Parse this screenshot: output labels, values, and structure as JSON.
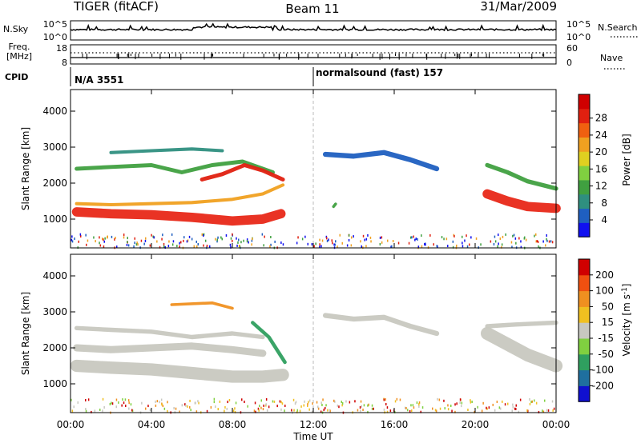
{
  "header": {
    "radar": "TIGER (fitACF)",
    "beam": "Beam 11",
    "date": "31/Mar/2009"
  },
  "strip": {
    "nsky_label": "N.Sky",
    "nsky_ticks": [
      "10^5",
      "10^0"
    ],
    "nsearch_label": "N.Search",
    "nsearch_ticks": [
      "10^5",
      "10^0"
    ],
    "freq_label": "Freq.",
    "freq_unit": "[MHz]",
    "freq_ticks": [
      "18",
      "8"
    ],
    "nave_label": "Nave",
    "nave_ticks": [
      "60",
      "0"
    ],
    "cpid_label": "CPID",
    "cpid_modes": [
      {
        "label": "N/A 3551"
      },
      {
        "label": "normalsound (fast) 157"
      }
    ]
  },
  "chart_data": [
    {
      "type": "heatmap",
      "name": "power",
      "ylabel": "Slant Range [km]",
      "xlabel": "Time UT",
      "xticks": [
        "00:00",
        "04:00",
        "08:00",
        "12:00",
        "16:00",
        "20:00",
        "00:00"
      ],
      "yticks": [
        "1000",
        "2000",
        "3000",
        "4000"
      ],
      "ylim": [
        200,
        4600
      ],
      "colorbar": {
        "label": "Power [dB]",
        "ticks": [
          "4",
          "8",
          "12",
          "16",
          "20",
          "24",
          "28"
        ],
        "colors": [
          "#1010f0",
          "#1f5fc0",
          "#2f8f7f",
          "#40a040",
          "#80d040",
          "#e0d020",
          "#f0a020",
          "#f06010",
          "#e02010",
          "#d00000"
        ]
      },
      "bands": [
        {
          "points": [
            [
              0.3,
              1200
            ],
            [
              2,
              1150
            ],
            [
              4,
              1120
            ],
            [
              6,
              1050
            ],
            [
              8,
              950
            ],
            [
              9.5,
              1000
            ],
            [
              10.4,
              1150
            ]
          ],
          "width": 260,
          "color": "#e82818"
        },
        {
          "points": [
            [
              0.3,
              1430
            ],
            [
              2,
              1400
            ],
            [
              4,
              1430
            ],
            [
              6,
              1460
            ],
            [
              8,
              1550
            ],
            [
              9.5,
              1700
            ],
            [
              10.5,
              1950
            ]
          ],
          "width": 90,
          "color": "#f0a020"
        },
        {
          "points": [
            [
              0.3,
              2400
            ],
            [
              2,
              2450
            ],
            [
              4,
              2500
            ],
            [
              5.5,
              2300
            ],
            [
              7,
              2500
            ],
            [
              8.5,
              2600
            ],
            [
              10,
              2300
            ]
          ],
          "width": 110,
          "color": "#40a040"
        },
        {
          "points": [
            [
              6.5,
              2100
            ],
            [
              7.5,
              2250
            ],
            [
              8.6,
              2500
            ],
            [
              9.5,
              2350
            ],
            [
              10.5,
              2100
            ]
          ],
          "width": 110,
          "color": "#e02010"
        },
        {
          "points": [
            [
              2,
              2850
            ],
            [
              4,
              2900
            ],
            [
              6,
              2950
            ],
            [
              7.5,
              2900
            ]
          ],
          "width": 90,
          "color": "#2f8f7f"
        },
        {
          "points": [
            [
              12.6,
              2800
            ],
            [
              14,
              2750
            ],
            [
              15.5,
              2850
            ],
            [
              16.8,
              2650
            ],
            [
              18.1,
              2400
            ]
          ],
          "width": 140,
          "color": "#1f5fc0"
        },
        {
          "points": [
            [
              20.6,
              2500
            ],
            [
              21.6,
              2300
            ],
            [
              22.6,
              2050
            ],
            [
              24,
              1850
            ]
          ],
          "width": 120,
          "color": "#40a040"
        },
        {
          "points": [
            [
              20.6,
              1700
            ],
            [
              21.6,
              1500
            ],
            [
              22.6,
              1350
            ],
            [
              24,
              1300
            ]
          ],
          "width": 260,
          "color": "#e82818"
        },
        {
          "points": [
            [
              13,
              1350
            ],
            [
              13.1,
              1420
            ]
          ],
          "width": 80,
          "color": "#40a040"
        }
      ]
    },
    {
      "type": "heatmap",
      "name": "velocity",
      "ylabel": "Slant Range [km]",
      "xlabel": "Time UT",
      "xticks": [
        "00:00",
        "04:00",
        "08:00",
        "12:00",
        "16:00",
        "20:00",
        "00:00"
      ],
      "yticks": [
        "1000",
        "2000",
        "3000",
        "4000"
      ],
      "ylim": [
        200,
        4600
      ],
      "colorbar": {
        "label": "Velocity [m s^-1]",
        "ticks": [
          "200",
          "100",
          "50",
          "15",
          "-15",
          "-50",
          "-100",
          "-200"
        ],
        "colors": [
          "#1010d0",
          "#1f6f9f",
          "#2f9f5f",
          "#80d040",
          "#c8c8c0",
          "#f0c020",
          "#f09020",
          "#f05010",
          "#d00000"
        ]
      },
      "bands": [
        {
          "points": [
            [
              0.3,
              1500
            ],
            [
              2,
              1450
            ],
            [
              4,
              1400
            ],
            [
              6,
              1300
            ],
            [
              8,
              1200
            ],
            [
              9.5,
              1200
            ],
            [
              10.5,
              1250
            ]
          ],
          "width": 340,
          "color": "#c8c8c0"
        },
        {
          "points": [
            [
              0.3,
              2000
            ],
            [
              2,
              1950
            ],
            [
              4,
              2000
            ],
            [
              6,
              2050
            ],
            [
              8,
              1950
            ],
            [
              9.5,
              1850
            ]
          ],
          "width": 200,
          "color": "#c8c8c0"
        },
        {
          "points": [
            [
              0.3,
              2550
            ],
            [
              2,
              2500
            ],
            [
              4,
              2450
            ],
            [
              6,
              2300
            ],
            [
              8,
              2400
            ],
            [
              9.5,
              2300
            ]
          ],
          "width": 120,
          "color": "#c8c8c0"
        },
        {
          "points": [
            [
              9,
              2700
            ],
            [
              9.8,
              2300
            ],
            [
              10.6,
              1600
            ]
          ],
          "width": 100,
          "color": "#2f9f5f"
        },
        {
          "points": [
            [
              12.6,
              2900
            ],
            [
              14,
              2800
            ],
            [
              15.5,
              2850
            ],
            [
              16.8,
              2600
            ],
            [
              18.1,
              2400
            ]
          ],
          "width": 140,
          "color": "#c8c8c0"
        },
        {
          "points": [
            [
              20.6,
              2400
            ],
            [
              21.6,
              2100
            ],
            [
              22.6,
              1800
            ],
            [
              24,
              1500
            ]
          ],
          "width": 360,
          "color": "#c8c8c0"
        },
        {
          "points": [
            [
              20.6,
              2600
            ],
            [
              22,
              2650
            ],
            [
              24,
              2700
            ]
          ],
          "width": 120,
          "color": "#c8c8c0"
        },
        {
          "points": [
            [
              5,
              3200
            ],
            [
              7,
              3250
            ],
            [
              8,
              3100
            ]
          ],
          "width": 80,
          "color": "#f09020"
        }
      ]
    }
  ]
}
